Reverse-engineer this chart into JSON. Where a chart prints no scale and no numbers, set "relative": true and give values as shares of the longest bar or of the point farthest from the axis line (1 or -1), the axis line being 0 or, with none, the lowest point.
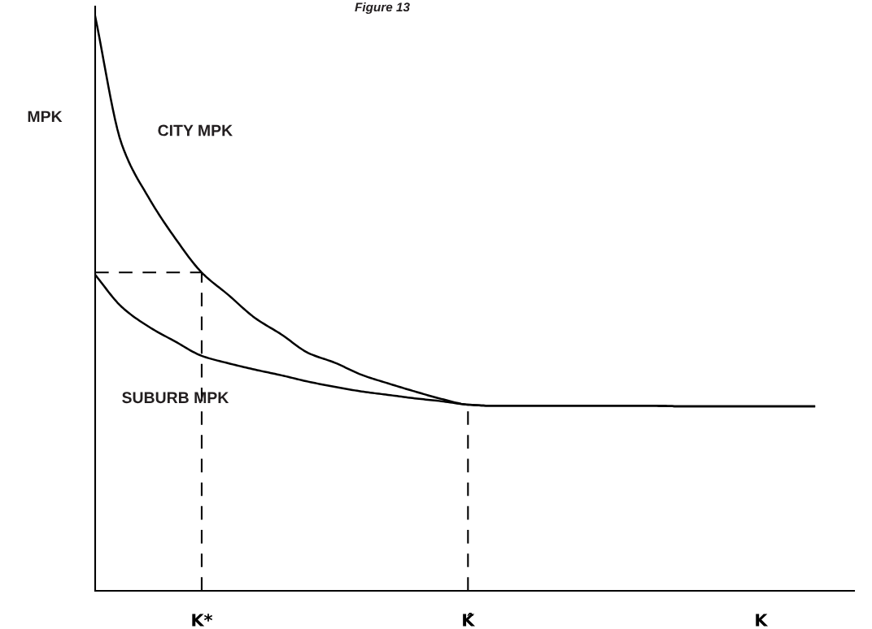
{
  "chart_data": {
    "type": "line",
    "title": "Figure 13",
    "ylabel": "MPK",
    "relative": true,
    "categories": [
      null,
      null,
      null,
      null,
      "K*",
      null,
      null,
      null,
      null,
      null,
      null,
      null,
      null,
      null,
      "K̂",
      null,
      null,
      null,
      null,
      null,
      null,
      null,
      null,
      null,
      null,
      "K",
      null,
      null
    ],
    "series": [
      {
        "name": "CITY MPK",
        "color": "#000000",
        "values": [
          1.0,
          0.777,
          0.685,
          0.614,
          0.554,
          0.515,
          0.475,
          0.446,
          0.414,
          0.397,
          0.376,
          0.361,
          0.347,
          0.334,
          0.324,
          0.322,
          0.322,
          0.322,
          0.322,
          0.322,
          0.322,
          0.322,
          0.321,
          0.321,
          0.321,
          0.321,
          0.321,
          0.321
        ]
      },
      {
        "name": "SUBURB MPK",
        "color": "#000000",
        "values": [
          0.55,
          0.494,
          0.46,
          0.434,
          0.409,
          0.396,
          0.385,
          0.375,
          0.364,
          0.355,
          0.347,
          0.341,
          0.335,
          0.33,
          0.324,
          0.322,
          0.322,
          0.322,
          0.322,
          0.322,
          0.322,
          0.322,
          0.321,
          0.321,
          0.321,
          0.321,
          0.321,
          0.321
        ]
      }
    ],
    "ref_lines": [
      {
        "axis": "y",
        "value": 0.554,
        "color": "#000000",
        "line_style": "dashed"
      },
      {
        "axis": "x",
        "value": "K*",
        "color": "#000000",
        "line_style": "dashed"
      },
      {
        "axis": "x",
        "value": "K̂",
        "color": "#000000",
        "line_style": "dashed"
      }
    ],
    "grid": false,
    "legend": false,
    "marker": "none",
    "line_style": "solid"
  }
}
